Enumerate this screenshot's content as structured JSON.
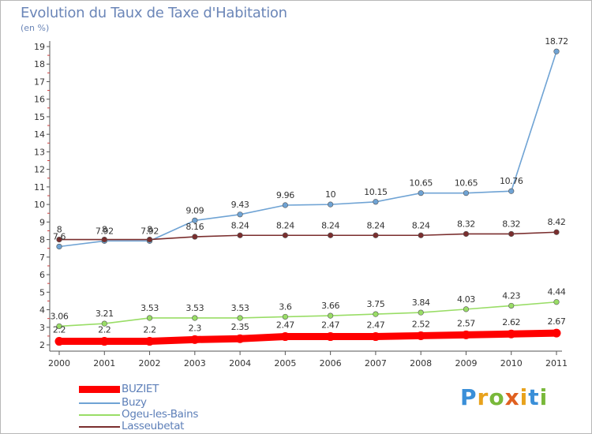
{
  "header": {
    "title": "Evolution du Taux de Taxe d'Habitation",
    "unit": "(en %)"
  },
  "brand": {
    "letters": [
      "P",
      "r",
      "o",
      "x",
      "i",
      "t",
      "i"
    ],
    "colors": [
      "#3a8fd8",
      "#e8a21c",
      "#79b83a",
      "#e06020",
      "#e8a21c",
      "#3a8fd8",
      "#79b83a"
    ]
  },
  "chart_data": {
    "type": "line",
    "x": [
      "2000",
      "2001",
      "2002",
      "2003",
      "2004",
      "2005",
      "2006",
      "2007",
      "2008",
      "2009",
      "2010",
      "2011"
    ],
    "y_ticks": [
      "2",
      "3",
      "4",
      "5",
      "6",
      "7",
      "8",
      "9",
      "10",
      "11",
      "12",
      "13",
      "14",
      "15",
      "16",
      "17",
      "18",
      "19"
    ],
    "ylim": [
      2,
      19.5
    ],
    "grid": false,
    "legend_position": "bottom-left",
    "series": [
      {
        "name": "BUZIET",
        "color": "#ff0000",
        "values": [
          2.2,
          2.2,
          2.2,
          2.3,
          2.35,
          2.47,
          2.47,
          2.47,
          2.52,
          2.57,
          2.62,
          2.67
        ],
        "labels": [
          "2.2",
          "2.2",
          "2.2",
          "2.3",
          "2.35",
          "2.47",
          "2.47",
          "2.47",
          "2.52",
          "2.57",
          "2.62",
          "2.67"
        ]
      },
      {
        "name": "Buzy",
        "color": "#6fa3d4",
        "values": [
          7.6,
          7.92,
          7.92,
          9.09,
          9.43,
          9.96,
          10.0,
          10.15,
          10.65,
          10.65,
          10.76,
          18.72
        ],
        "labels": [
          "7.6",
          "7.92",
          "7.92",
          "9.09",
          "9.43",
          "9.96",
          "10",
          "10.15",
          "10.65",
          "10.65",
          "10.76",
          "18.72"
        ]
      },
      {
        "name": "Ogeu-les-Bains",
        "color": "#99dd66",
        "values": [
          3.06,
          3.21,
          3.53,
          3.53,
          3.53,
          3.6,
          3.66,
          3.75,
          3.84,
          4.03,
          4.23,
          4.44
        ],
        "labels": [
          "3.06",
          "3.21",
          "3.53",
          "3.53",
          "3.53",
          "3.6",
          "3.66",
          "3.75",
          "3.84",
          "4.03",
          "4.23",
          "4.44"
        ]
      },
      {
        "name": "Lasseubetat",
        "color": "#7a2e2e",
        "values": [
          8.0,
          8.0,
          8.0,
          8.16,
          8.24,
          8.24,
          8.24,
          8.24,
          8.24,
          8.32,
          8.32,
          8.42
        ],
        "labels": [
          "8",
          "8",
          "8",
          "8.16",
          "8.24",
          "8.24",
          "8.24",
          "8.24",
          "8.24",
          "8.32",
          "8.32",
          "8.42"
        ]
      }
    ]
  }
}
